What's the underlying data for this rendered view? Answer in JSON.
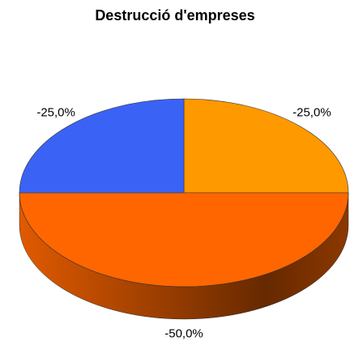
{
  "chart_data": {
    "type": "pie",
    "title": "Destrucció d'empreses",
    "values": [
      -25,
      -50,
      -25
    ],
    "value_labels": [
      "-25,0%",
      "-50,0%",
      "-25,0%"
    ],
    "colors": [
      "#ff9900",
      "#ff6600",
      "#3a63f5"
    ]
  }
}
